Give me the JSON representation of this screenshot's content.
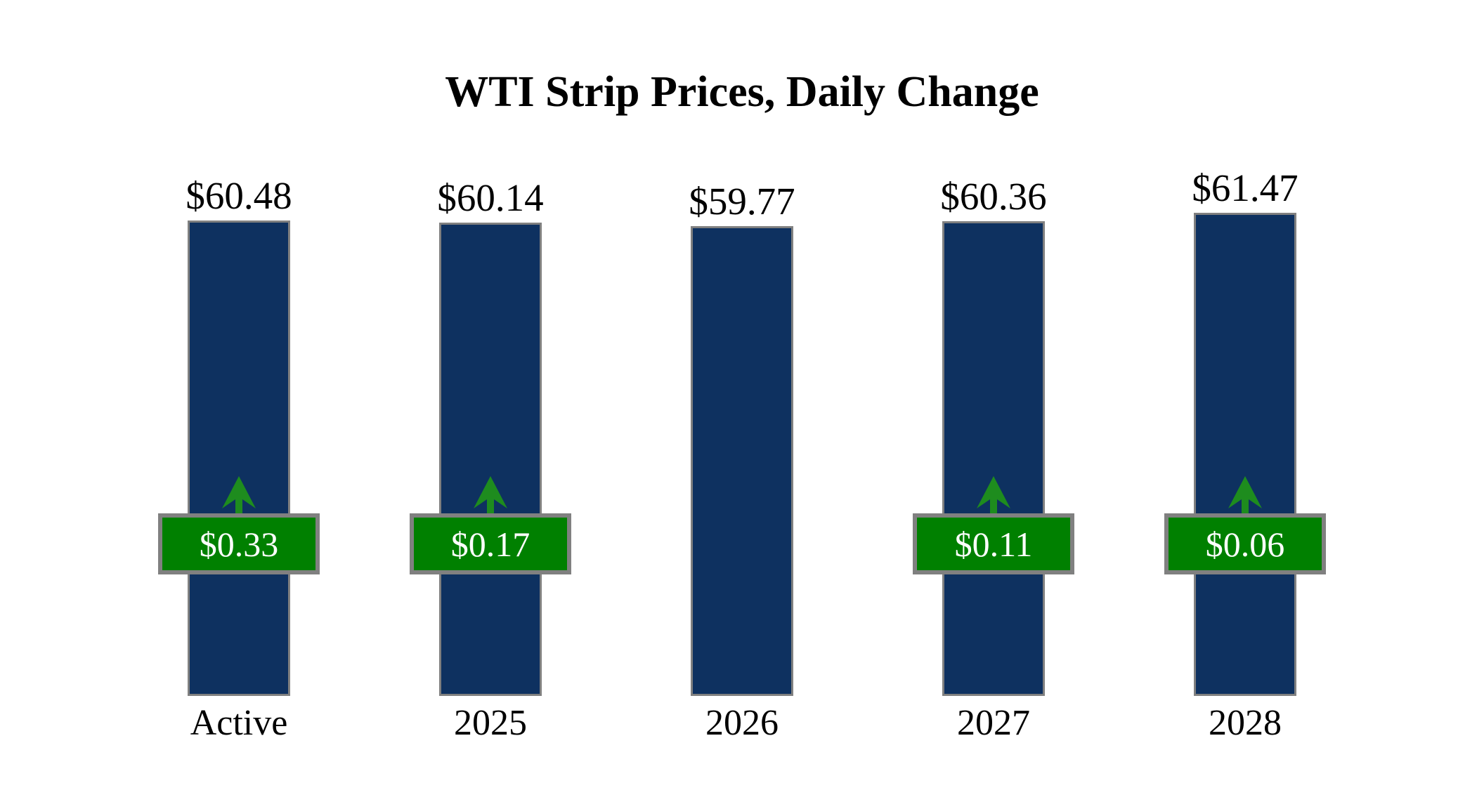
{
  "title": "WTI Strip Prices, Daily Change",
  "chart_data": {
    "type": "bar",
    "title": "WTI Strip Prices, Daily Change",
    "categories": [
      "Active",
      "2025",
      "2026",
      "2027",
      "2028"
    ],
    "series": [
      {
        "name": "strip_price",
        "values": [
          60.48,
          60.14,
          59.77,
          60.36,
          61.47
        ],
        "labels": [
          "$60.48",
          "$60.14",
          "$59.77",
          "$60.36",
          "$61.47"
        ]
      },
      {
        "name": "daily_change",
        "values": [
          0.33,
          0.17,
          null,
          0.11,
          0.06
        ],
        "labels": [
          "$0.33",
          "$0.17",
          null,
          "$0.11",
          "$0.06"
        ],
        "direction": [
          "up",
          "up",
          null,
          "up",
          "up"
        ]
      }
    ],
    "value_axis_baseline": 0,
    "grid": false,
    "legend": "none",
    "colors": {
      "bar": "#0e3160",
      "bar_border": "#808080",
      "badge_bg": "#008000",
      "badge_border": "#808080",
      "badge_text": "#ffffff",
      "arrow": "#1e8c1e",
      "text": "#000000",
      "background": "#ffffff"
    }
  }
}
